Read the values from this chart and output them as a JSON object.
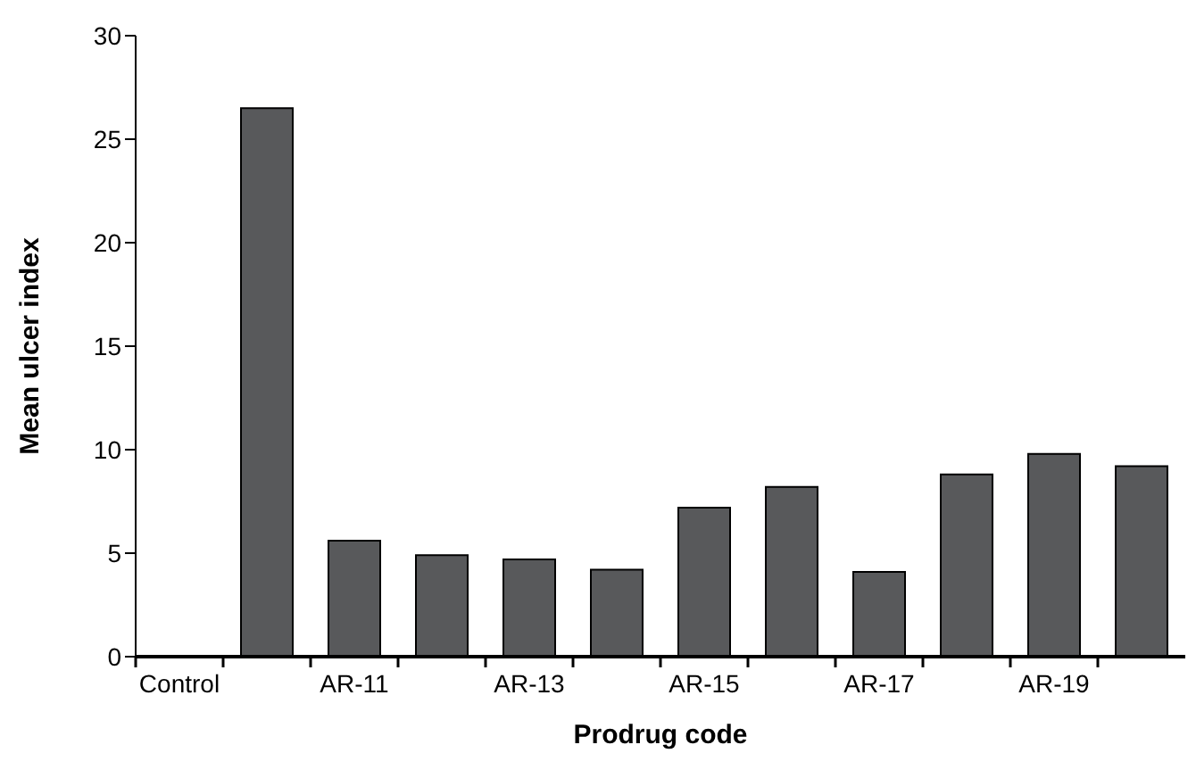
{
  "chart_data": {
    "type": "bar",
    "xlabel": "Prodrug code",
    "ylabel": "Mean ulcer index",
    "categories": [
      "Control",
      null,
      "AR-11",
      null,
      "AR-13",
      null,
      "AR-15",
      null,
      "AR-17",
      null,
      "AR-19",
      null
    ],
    "values": [
      0,
      26.5,
      5.6,
      4.9,
      4.7,
      4.2,
      7.2,
      8.2,
      4.1,
      8.8,
      9.8,
      9.2
    ],
    "color": "#58595b",
    "ylim": [
      0,
      30
    ],
    "yticks": [
      0,
      5,
      10,
      15,
      20,
      25,
      30
    ],
    "grid": false,
    "legend": false
  }
}
